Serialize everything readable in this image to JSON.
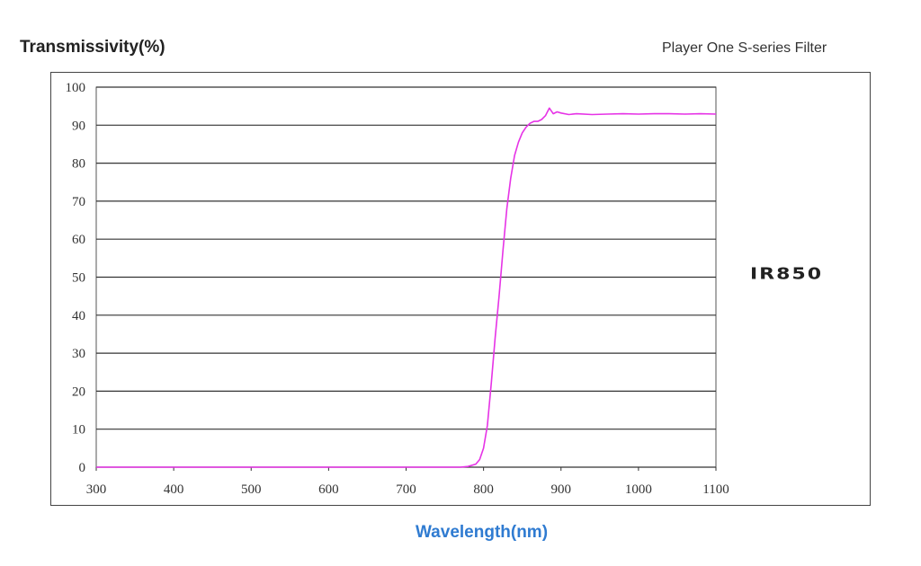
{
  "chart_data": {
    "type": "line",
    "title": "Transmissivity(%)",
    "subtitle": "Player One S-series Filter",
    "annotation": "IR850",
    "xlabel": "Wavelength(nm)",
    "ylabel": "Transmissivity(%)",
    "xlim": [
      300,
      1100
    ],
    "ylim": [
      0,
      100
    ],
    "xticks": [
      300,
      400,
      500,
      600,
      700,
      800,
      900,
      1000,
      1100
    ],
    "yticks": [
      0,
      10,
      20,
      30,
      40,
      50,
      60,
      70,
      80,
      90,
      100
    ],
    "grid": "horizontal",
    "line_color": "#e633e6",
    "series": [
      {
        "x": [
          300,
          500,
          700,
          770,
          780,
          790,
          795,
          800,
          805,
          810,
          815,
          820,
          825,
          830,
          835,
          840,
          845,
          850,
          855,
          860,
          865,
          870,
          875,
          880,
          885,
          890,
          895,
          900,
          910,
          920,
          940,
          960,
          980,
          1000,
          1020,
          1040,
          1060,
          1080,
          1100
        ],
        "y": [
          0,
          0,
          0,
          0,
          0.2,
          0.8,
          2,
          5,
          11,
          22,
          34,
          45,
          57,
          68,
          76,
          82,
          85.5,
          88,
          89.5,
          90.5,
          91,
          91,
          91.5,
          92.5,
          94.5,
          93,
          93.5,
          93.2,
          92.8,
          93,
          92.8,
          92.9,
          93,
          92.9,
          93,
          93,
          92.9,
          93,
          92.9
        ]
      }
    ]
  }
}
